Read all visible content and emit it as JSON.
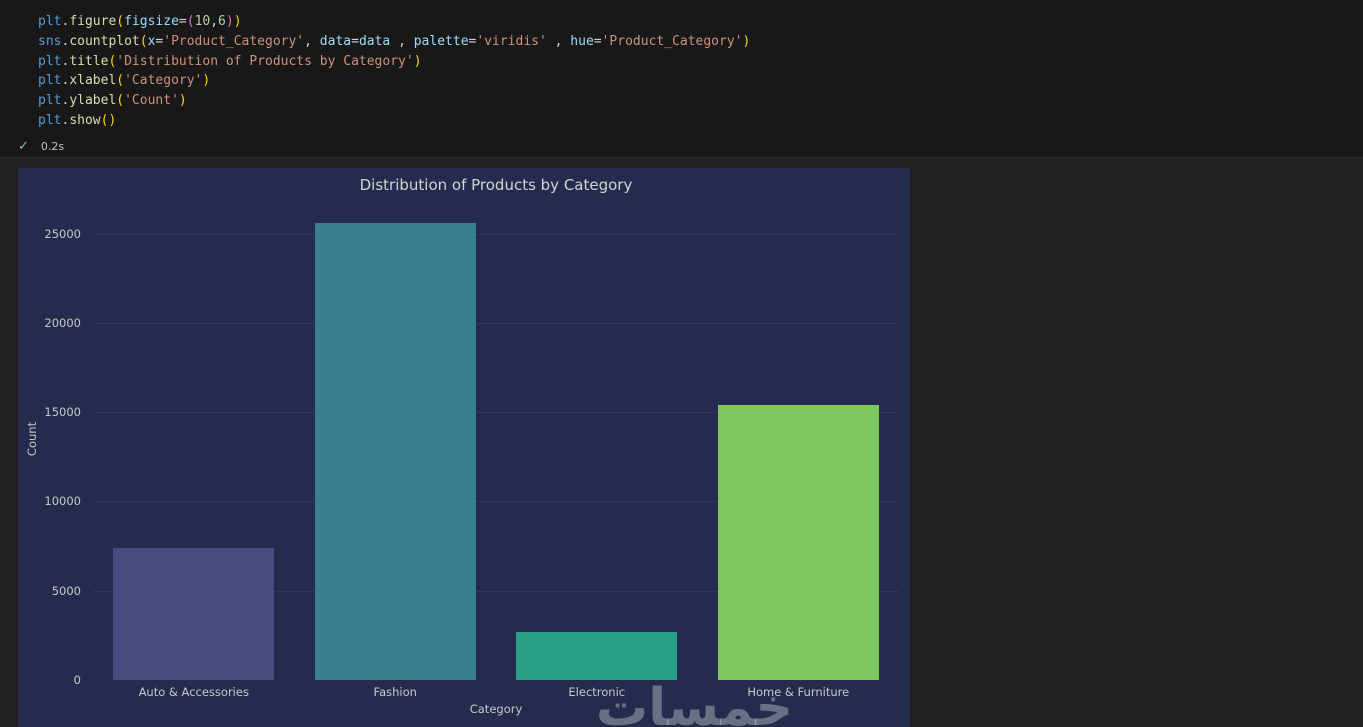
{
  "notebook": {
    "execution": {
      "status": "success",
      "time": "0.2s"
    },
    "code_lines": [
      [
        [
          "plt",
          "mod"
        ],
        [
          ".",
          "pl"
        ],
        [
          "figure",
          "fn"
        ],
        [
          "(",
          "b1"
        ],
        [
          "figsize",
          "pr"
        ],
        [
          "=",
          "pl"
        ],
        [
          "(",
          "b2"
        ],
        [
          "10",
          "nu"
        ],
        [
          ",",
          "pl"
        ],
        [
          "6",
          "nu"
        ],
        [
          ")",
          "b2"
        ],
        [
          ")",
          "b1"
        ]
      ],
      [
        [
          "sns",
          "mod"
        ],
        [
          ".",
          "pl"
        ],
        [
          "countplot",
          "fn"
        ],
        [
          "(",
          "b1"
        ],
        [
          "x",
          "pr"
        ],
        [
          "=",
          "pl"
        ],
        [
          "'Product_Category'",
          "st"
        ],
        [
          ", ",
          "pl"
        ],
        [
          "data",
          "pr"
        ],
        [
          "=",
          "pl"
        ],
        [
          "data",
          "pr"
        ],
        [
          " , ",
          "pl"
        ],
        [
          "palette",
          "pr"
        ],
        [
          "=",
          "pl"
        ],
        [
          "'viridis'",
          "st"
        ],
        [
          " , ",
          "pl"
        ],
        [
          "hue",
          "pr"
        ],
        [
          "=",
          "pl"
        ],
        [
          "'Product_Category'",
          "st"
        ],
        [
          ")",
          "b1"
        ]
      ],
      [
        [
          "plt",
          "mod"
        ],
        [
          ".",
          "pl"
        ],
        [
          "title",
          "fn"
        ],
        [
          "(",
          "b1"
        ],
        [
          "'Distribution of Products by Category'",
          "st"
        ],
        [
          ")",
          "b1"
        ]
      ],
      [
        [
          "plt",
          "mod"
        ],
        [
          ".",
          "pl"
        ],
        [
          "xlabel",
          "fn"
        ],
        [
          "(",
          "b1"
        ],
        [
          "'Category'",
          "st"
        ],
        [
          ")",
          "b1"
        ]
      ],
      [
        [
          "plt",
          "mod"
        ],
        [
          ".",
          "pl"
        ],
        [
          "ylabel",
          "fn"
        ],
        [
          "(",
          "b1"
        ],
        [
          "'Count'",
          "st"
        ],
        [
          ")",
          "b1"
        ]
      ],
      [
        [
          "plt",
          "mod"
        ],
        [
          ".",
          "pl"
        ],
        [
          "show",
          "fn"
        ],
        [
          "(",
          "b1"
        ],
        [
          ")",
          "b1"
        ]
      ]
    ]
  },
  "chart_data": {
    "type": "bar",
    "title": "Distribution of Products by Category",
    "xlabel": "Category",
    "ylabel": "Count",
    "categories": [
      "Auto & Accessories",
      "Fashion",
      "Electronic",
      "Home & Furniture"
    ],
    "values": [
      7400,
      25600,
      2700,
      15400
    ],
    "bar_colors": [
      "#4b4a7e",
      "#3a7f8e",
      "#2aa187",
      "#7dc95e"
    ],
    "yticks": [
      0,
      5000,
      10000,
      15000,
      20000,
      25000
    ],
    "ylim": [
      0,
      27000
    ],
    "grid": true,
    "legend": false,
    "background": "#262b4d",
    "watermark": "خمسات"
  }
}
